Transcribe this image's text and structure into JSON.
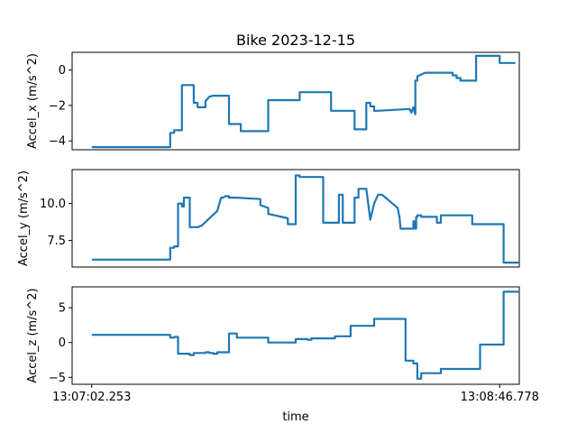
{
  "chart_data": [
    {
      "type": "line",
      "title": "Bike  2023-12-15",
      "ylabel": "Accel_x  (m/s^2)",
      "ylim": [
        -4.5,
        1.0
      ],
      "yticks": [
        0,
        -2,
        -4
      ],
      "ytick_labels": [
        "0",
        "−2",
        "−4"
      ],
      "xlim": [
        -5,
        109
      ],
      "series": [
        {
          "x": [
            0,
            20,
            20,
            21,
            21,
            23,
            23,
            26,
            26,
            27,
            27,
            29,
            29,
            30,
            31,
            33,
            35,
            35,
            37,
            38,
            38,
            39,
            39,
            45,
            45,
            53,
            53,
            55,
            55,
            61,
            61,
            65,
            65,
            67,
            67,
            69,
            70,
            70,
            71,
            71,
            72,
            72,
            73,
            81,
            81.5,
            82,
            82.5,
            82.5,
            83,
            83,
            85,
            86,
            86.5,
            87,
            92,
            92,
            93,
            93,
            94,
            94,
            98,
            98,
            104,
            104,
            108
          ],
          "y": [
            -4.35,
            -4.35,
            -3.55,
            -3.55,
            -3.4,
            -3.4,
            -0.85,
            -0.85,
            -1.85,
            -1.85,
            -2.1,
            -2.1,
            -1.75,
            -1.5,
            -1.45,
            -1.45,
            -1.45,
            -3.05,
            -3.05,
            -3.05,
            -3.45,
            -3.45,
            -3.45,
            -3.45,
            -1.7,
            -1.7,
            -1.25,
            -1.25,
            -1.25,
            -1.25,
            -2.3,
            -2.3,
            -2.3,
            -2.3,
            -3.35,
            -3.35,
            -3.35,
            -1.85,
            -1.85,
            -2.05,
            -2.05,
            -2.3,
            -2.3,
            -2.2,
            -2.4,
            -2.1,
            -2.5,
            -0.6,
            -0.6,
            -0.35,
            -0.15,
            -0.15,
            -0.15,
            -0.15,
            -0.15,
            -0.3,
            -0.3,
            -0.45,
            -0.45,
            -0.6,
            -0.6,
            0.8,
            0.8,
            0.4,
            0.4
          ]
        }
      ]
    },
    {
      "type": "line",
      "title": "",
      "ylabel": "Accel_y  (m/s^2)",
      "ylim": [
        5.7,
        12.3
      ],
      "yticks": [
        7.5,
        10.0
      ],
      "ytick_labels": [
        "7.5",
        "10.0"
      ],
      "xlim": [
        -5,
        109
      ],
      "series": [
        {
          "x": [
            0,
            20,
            20,
            21,
            21,
            22,
            22,
            23,
            23,
            23.5,
            23.5,
            25,
            25,
            26,
            27,
            28,
            32,
            33,
            33.5,
            34,
            34,
            35,
            35,
            37,
            37,
            43,
            43,
            45,
            45,
            50,
            50,
            52,
            52,
            53,
            53,
            55,
            55,
            59,
            59,
            63,
            63,
            64,
            64,
            67,
            67,
            68,
            68,
            70,
            71,
            71,
            72,
            72,
            73,
            74,
            78,
            78.5,
            78.7,
            79,
            79,
            82,
            82,
            82.5,
            82.5,
            82.7,
            82.7,
            83,
            83,
            84,
            84,
            88,
            88,
            89,
            89,
            90,
            90,
            97,
            97,
            99,
            99,
            105,
            105,
            109
          ],
          "y": [
            6.2,
            6.2,
            7.0,
            7.0,
            7.1,
            7.1,
            10.0,
            10.0,
            9.8,
            9.8,
            10.4,
            10.4,
            8.4,
            8.4,
            8.4,
            8.5,
            9.5,
            10.4,
            10.4,
            10.5,
            10.5,
            10.5,
            10.4,
            10.4,
            10.4,
            10.3,
            9.9,
            9.7,
            9.3,
            9.0,
            8.6,
            8.6,
            11.9,
            11.9,
            11.8,
            11.8,
            11.8,
            11.8,
            8.7,
            8.7,
            10.6,
            10.6,
            8.7,
            8.7,
            10.4,
            10.4,
            11.0,
            11.0,
            8.9,
            8.9,
            10.0,
            10.0,
            10.6,
            10.6,
            9.7,
            9.0,
            8.3,
            8.3,
            8.3,
            8.3,
            8.8,
            8.8,
            8.3,
            8.3,
            9.1,
            9.1,
            9.2,
            9.2,
            9.1,
            9.1,
            8.7,
            8.7,
            9.2,
            9.2,
            9.2,
            9.2,
            8.6,
            8.6,
            8.6,
            8.6,
            6.0,
            6.0
          ]
        }
      ]
    },
    {
      "type": "line",
      "title": "",
      "xlabel": "time",
      "ylabel": "Accel_z  (m/s^2)",
      "ylim": [
        -6,
        8
      ],
      "yticks": [
        5,
        0,
        -5
      ],
      "ytick_labels": [
        "5",
        "0",
        "−5"
      ],
      "xlim": [
        -5,
        109
      ],
      "xticks": [
        0,
        104
      ],
      "xtick_labels": [
        "13:07:02.253",
        "13:08:46.778"
      ],
      "series": [
        {
          "x": [
            0,
            20,
            20,
            21,
            21,
            22,
            22,
            24,
            24,
            25,
            25,
            26,
            26,
            27,
            28,
            29,
            29,
            30,
            30,
            31,
            31,
            32,
            32,
            35,
            35,
            36,
            36,
            37,
            37,
            38,
            38,
            40,
            40,
            45,
            45,
            50,
            50,
            52,
            52,
            53,
            53,
            55,
            55,
            56,
            56,
            58,
            58,
            62,
            62,
            66,
            66,
            72,
            72,
            80,
            80,
            82,
            82,
            83,
            83,
            84,
            84,
            87,
            87,
            89,
            89,
            95,
            95,
            99,
            99,
            103,
            103,
            105,
            105,
            109
          ],
          "y": [
            1.1,
            1.1,
            0.7,
            0.7,
            0.8,
            0.8,
            -1.6,
            -1.6,
            -1.6,
            -1.6,
            -1.8,
            -1.8,
            -1.5,
            -1.5,
            -1.5,
            -1.5,
            -1.4,
            -1.4,
            -1.5,
            -1.5,
            -1.6,
            -1.6,
            -1.4,
            -1.4,
            1.3,
            1.3,
            1.3,
            1.3,
            0.7,
            0.7,
            0.7,
            0.7,
            0.7,
            0.7,
            0.0,
            0.0,
            0.0,
            0.0,
            0.5,
            0.5,
            0.5,
            0.5,
            0.4,
            0.4,
            0.6,
            0.6,
            0.6,
            0.6,
            0.9,
            0.9,
            2.4,
            2.4,
            3.4,
            3.4,
            -2.6,
            -2.6,
            -3.0,
            -3.0,
            -5.2,
            -5.2,
            -4.4,
            -4.4,
            -4.4,
            -4.4,
            -3.8,
            -3.8,
            -3.8,
            -3.8,
            -0.3,
            -0.3,
            -0.3,
            -0.3,
            7.3,
            7.3
          ]
        }
      ]
    }
  ]
}
